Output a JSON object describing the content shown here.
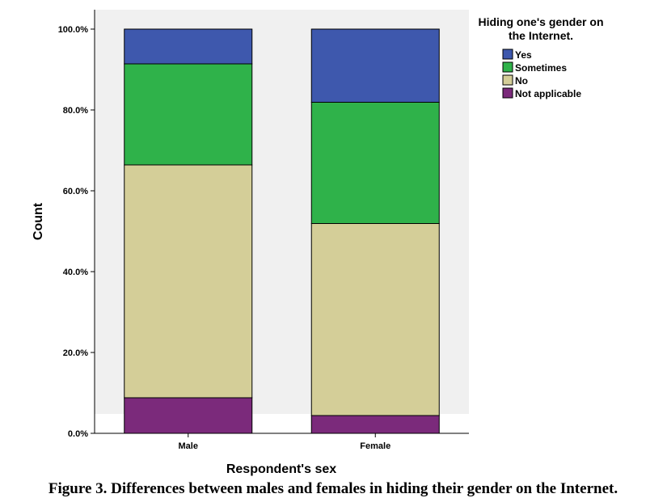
{
  "chart_data": {
    "type": "bar",
    "stacked": true,
    "xlabel": "Respondent's sex",
    "ylabel": "Count",
    "categories": [
      "Male",
      "Female"
    ],
    "ylim": [
      0,
      100
    ],
    "yticks": [
      "0.0%",
      "20.0%",
      "40.0%",
      "60.0%",
      "80.0%",
      "100.0%"
    ],
    "legend_title": "Hiding one's gender on the Internet.",
    "legend_position": "right",
    "series": [
      {
        "name": "Not applicable",
        "color": "#7b2a7b",
        "values": [
          8.8,
          4.4
        ]
      },
      {
        "name": "No",
        "color": "#d4ce98",
        "values": [
          57.6,
          47.5
        ]
      },
      {
        "name": "Sometimes",
        "color": "#2fb24a",
        "values": [
          25.0,
          30.0
        ]
      },
      {
        "name": "Yes",
        "color": "#3e58ad",
        "values": [
          8.6,
          18.1
        ]
      }
    ],
    "legend_order": [
      "Yes",
      "Sometimes",
      "No",
      "Not applicable"
    ]
  },
  "caption": "Figure 3. Differences between males and females in hiding their gender on the Internet."
}
